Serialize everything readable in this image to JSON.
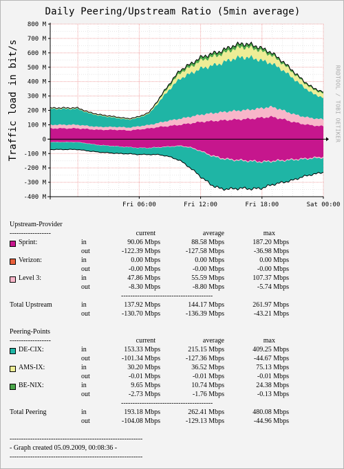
{
  "chart_data": {
    "type": "area",
    "title": "Daily Peering/Upstream Ratio (5min average)",
    "ylabel": "Traffic load in bit/s",
    "watermark": "RRDTOOL / TOBI OETIKER",
    "ylim": [
      -400,
      800
    ],
    "y_ticks": [
      "800 M",
      "700 M",
      "600 M",
      "500 M",
      "400 M",
      "300 M",
      "200 M",
      "100 M",
      "0",
      "-100 M",
      "-200 M",
      "-300 M",
      "-400 M"
    ],
    "x_ticks": [
      "Fri 06:00",
      "Fri 12:00",
      "Fri 18:00",
      "Sat 00:00"
    ],
    "grid": true,
    "x_hours": [
      0,
      1,
      2,
      3,
      4,
      5,
      6,
      7,
      8,
      9,
      10,
      11,
      12,
      13,
      14,
      15,
      16,
      17,
      18,
      19,
      20,
      21,
      22,
      23,
      24
    ],
    "series": [
      {
        "name": "Sprint",
        "color": "#c6168d",
        "direction": "in",
        "values": [
          75,
          70,
          65,
          65,
          65,
          60,
          68,
          75,
          85,
          92,
          100,
          110,
          120,
          125,
          130,
          135,
          138,
          142,
          150,
          155,
          140,
          120,
          105,
          95,
          90
        ]
      },
      {
        "name": "Level 3",
        "color": "#f8b6c9",
        "direction": "in",
        "values": [
          25,
          22,
          20,
          20,
          20,
          20,
          22,
          24,
          30,
          38,
          42,
          46,
          50,
          54,
          57,
          60,
          62,
          64,
          66,
          70,
          62,
          56,
          52,
          50,
          48
        ]
      },
      {
        "name": "DE-CIX",
        "color": "#1fb5a5",
        "direction": "in",
        "values": [
          110,
          90,
          80,
          70,
          60,
          55,
          60,
          80,
          150,
          220,
          280,
          300,
          320,
          330,
          340,
          360,
          370,
          360,
          330,
          300,
          280,
          250,
          210,
          170,
          150
        ]
      },
      {
        "name": "AMS-IX",
        "color": "#eded96",
        "direction": "in",
        "values": [
          5,
          5,
          5,
          5,
          5,
          5,
          5,
          6,
          15,
          25,
          40,
          45,
          55,
          60,
          62,
          65,
          70,
          68,
          65,
          55,
          45,
          38,
          32,
          30,
          30
        ]
      },
      {
        "name": "BE-NIX",
        "color": "#4aa64a",
        "direction": "in",
        "values": [
          2,
          2,
          2,
          2,
          2,
          2,
          2,
          3,
          8,
          15,
          18,
          20,
          22,
          22,
          22,
          24,
          24,
          22,
          20,
          18,
          15,
          12,
          10,
          10,
          10
        ]
      },
      {
        "name": "Sprint",
        "color": "#c6168d",
        "direction": "out",
        "values": [
          -20,
          -30,
          -40,
          -45,
          -50,
          -55,
          -60,
          -60,
          -55,
          -50,
          -45,
          -55,
          -80,
          -110,
          -130,
          -140,
          -145,
          -150,
          -155,
          -150,
          -145,
          -140,
          -135,
          -128,
          -122
        ]
      },
      {
        "name": "Level 3",
        "color": "#f8b6c9",
        "direction": "out",
        "values": [
          -2,
          -2,
          -2,
          -2,
          -2,
          -2,
          -2,
          -2,
          -3,
          -3,
          -4,
          -5,
          -5,
          -6,
          -6,
          -6,
          -6,
          -6,
          -6,
          -6,
          -6,
          -6,
          -6,
          -6,
          -8
        ]
      },
      {
        "name": "DE-CIX",
        "color": "#1fb5a5",
        "direction": "out",
        "values": [
          -50,
          -50,
          -48,
          -48,
          -48,
          -45,
          -45,
          -45,
          -50,
          -70,
          -100,
          -140,
          -175,
          -200,
          -210,
          -200,
          -190,
          -190,
          -180,
          -160,
          -150,
          -140,
          -120,
          -110,
          -101
        ]
      }
    ]
  },
  "upstream": {
    "heading": "Upstream-Provider",
    "rule": "------------------",
    "col_current": "current",
    "col_average": "average",
    "col_max": "max",
    "rows": [
      {
        "name": "Sprint:",
        "color": "#c6168d",
        "in": {
          "label": "in",
          "current": "90.06 Mbps",
          "average": "88.58 Mbps",
          "max": "187.20 Mbps"
        },
        "out": {
          "label": "out",
          "current": "-122.39 Mbps",
          "average": "-127.58 Mbps",
          "max": "-36.98 Mbps"
        }
      },
      {
        "name": "Verizon:",
        "color": "#e8603c",
        "in": {
          "label": "in",
          "current": "0.00 Mbps",
          "average": "0.00 Mbps",
          "max": "0.00 Mbps"
        },
        "out": {
          "label": "out",
          "current": "-0.00 Mbps",
          "average": "-0.00 Mbps",
          "max": "-0.00 Mbps"
        }
      },
      {
        "name": "Level 3:",
        "color": "#f8b6c9",
        "in": {
          "label": "in",
          "current": "47.86 Mbps",
          "average": "55.59 Mbps",
          "max": "107.37 Mbps"
        },
        "out": {
          "label": "out",
          "current": "-8.30 Mbps",
          "average": "-8.80 Mbps",
          "max": "-5.74 Mbps"
        }
      }
    ],
    "sep": "----------------------------------------",
    "total": {
      "name": "Total Upstream",
      "in": {
        "label": "in",
        "current": "137.92 Mbps",
        "average": "144.17 Mbps",
        "max": "261.97 Mbps"
      },
      "out": {
        "label": "out",
        "current": "-130.70 Mbps",
        "average": "-136.39 Mbps",
        "max": "-43.21 Mbps"
      }
    }
  },
  "peering": {
    "heading": "Peering-Points",
    "rule": "------------------",
    "col_current": "current",
    "col_average": "average",
    "col_max": "max",
    "rows": [
      {
        "name": "DE-CIX:",
        "color": "#1fb5a5",
        "in": {
          "label": "in",
          "current": "153.33 Mbps",
          "average": "215.15 Mbps",
          "max": "409.25 Mbps"
        },
        "out": {
          "label": "out",
          "current": "-101.34 Mbps",
          "average": "-127.36 Mbps",
          "max": "-44.67 Mbps"
        }
      },
      {
        "name": "AMS-IX:",
        "color": "#eded96",
        "in": {
          "label": "in",
          "current": "30.20 Mbps",
          "average": "36.52 Mbps",
          "max": "75.13 Mbps"
        },
        "out": {
          "label": "out",
          "current": "-0.01 Mbps",
          "average": "-0.01 Mbps",
          "max": "-0.01 Mbps"
        }
      },
      {
        "name": "BE-NIX:",
        "color": "#4aa64a",
        "in": {
          "label": "in",
          "current": "9.65 Mbps",
          "average": "10.74 Mbps",
          "max": "24.38 Mbps"
        },
        "out": {
          "label": "out",
          "current": "-2.73 Mbps",
          "average": "-1.76 Mbps",
          "max": "-0.13 Mbps"
        }
      }
    ],
    "sep": "----------------------------------------",
    "total": {
      "name": "Total Peering",
      "in": {
        "label": "in",
        "current": "193.18 Mbps",
        "average": "262.41 Mbps",
        "max": "480.08 Mbps"
      },
      "out": {
        "label": "out",
        "current": "-104.08 Mbps",
        "average": "-129.13 Mbps",
        "max": "-44.96 Mbps"
      }
    }
  },
  "footer": {
    "rule": "----------------------------------------------------------",
    "created": "- Graph created 05.09.2009, 00:08:36 -"
  }
}
